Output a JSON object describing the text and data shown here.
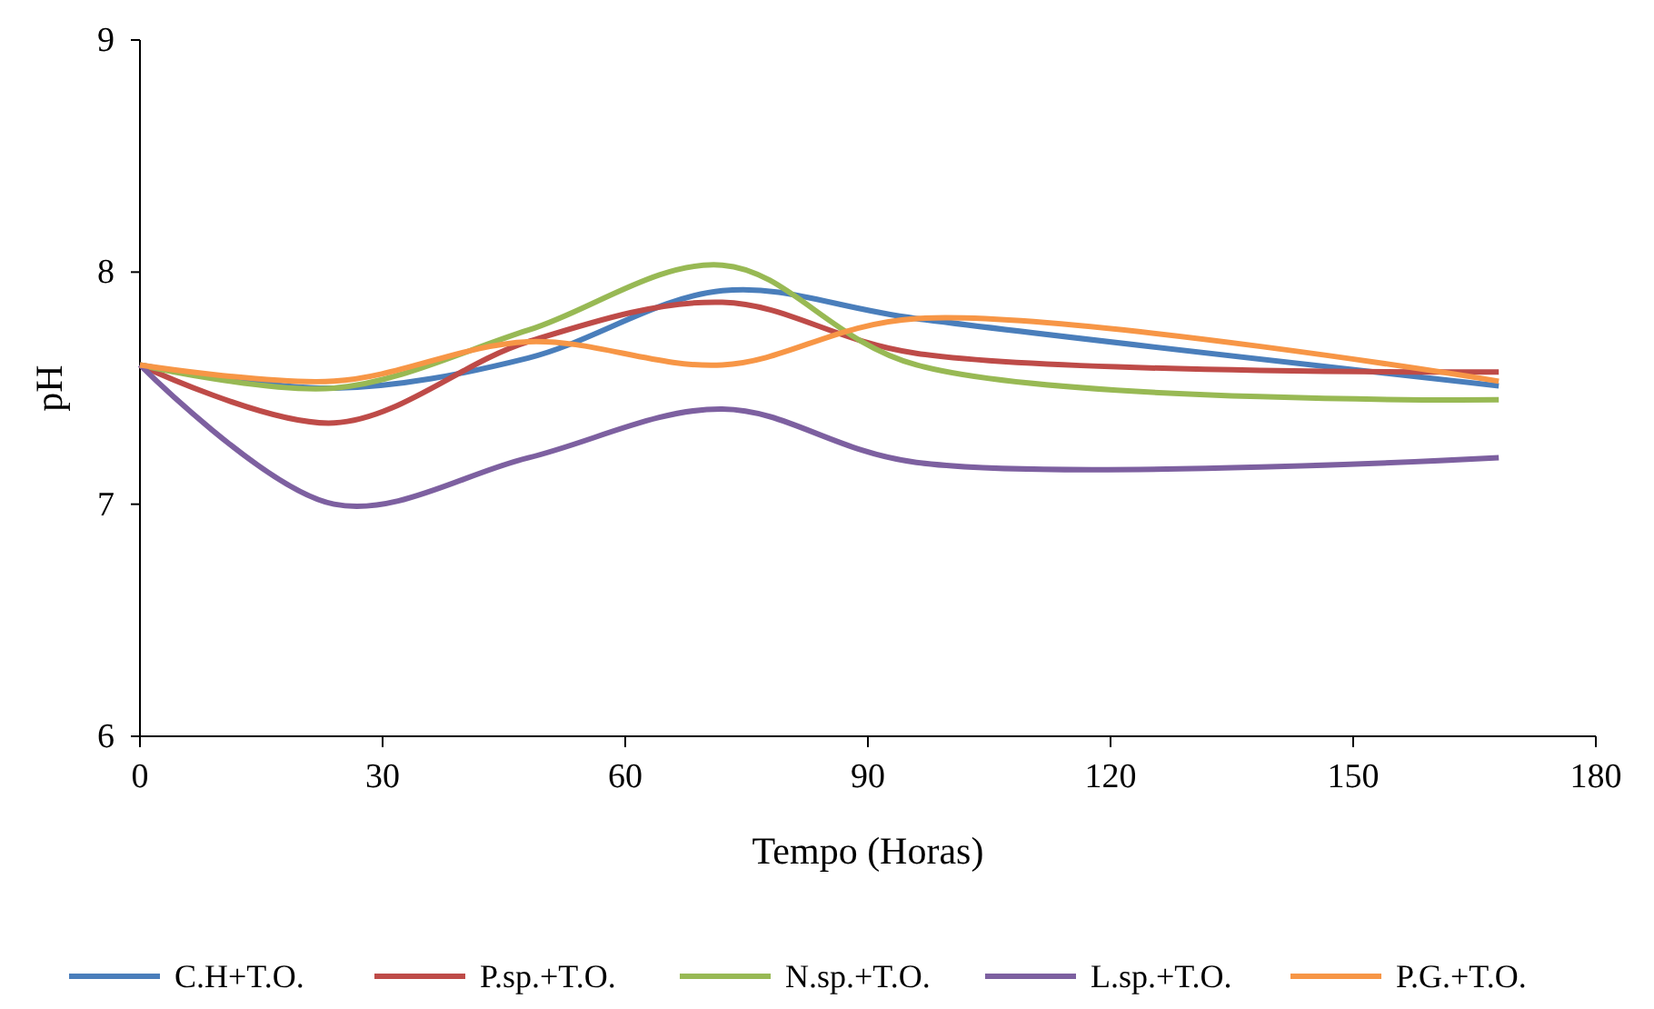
{
  "chart_data": {
    "type": "line",
    "xlabel": "Tempo (Horas)",
    "ylabel": "pH",
    "x": [
      0,
      24,
      48,
      72,
      96,
      168
    ],
    "xlim": [
      0,
      180
    ],
    "xticks": [
      0,
      30,
      60,
      90,
      120,
      150,
      180
    ],
    "ylim": [
      6,
      9
    ],
    "yticks": [
      6,
      7,
      8,
      9
    ],
    "grid": false,
    "legend": "bottom",
    "marker": "none",
    "line_style": "solid",
    "series": [
      {
        "name": "C.H+T.O.",
        "color": "#4a7ebb",
        "values": [
          7.6,
          7.5,
          7.63,
          7.92,
          7.8,
          7.51
        ]
      },
      {
        "name": "P.sp.+T.O.",
        "color": "#be4b48",
        "values": [
          7.6,
          7.35,
          7.7,
          7.87,
          7.65,
          7.57
        ]
      },
      {
        "name": "N.sp.+T.O.",
        "color": "#98b954",
        "values": [
          7.6,
          7.5,
          7.75,
          8.03,
          7.6,
          7.45
        ]
      },
      {
        "name": "L.sp.+T.O.",
        "color": "#7d60a0",
        "values": [
          7.6,
          7.0,
          7.2,
          7.41,
          7.18,
          7.2
        ]
      },
      {
        "name": "P.G.+T.O.",
        "color": "#f79646",
        "values": [
          7.6,
          7.53,
          7.7,
          7.6,
          7.8,
          7.53
        ]
      }
    ]
  }
}
